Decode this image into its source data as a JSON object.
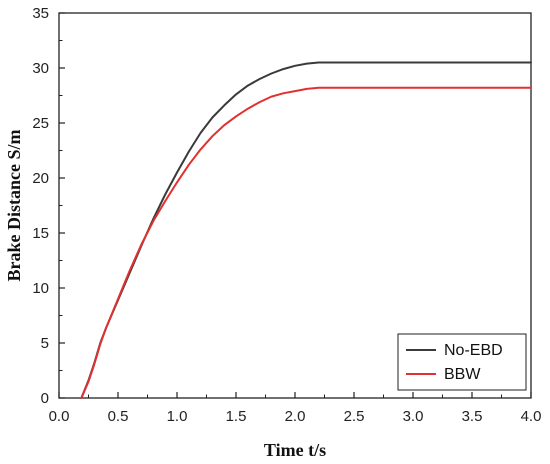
{
  "chart_data": {
    "type": "line",
    "xlabel": "Time t/s",
    "ylabel": "Brake Distance  S/m",
    "xlim": [
      0,
      4
    ],
    "ylim": [
      0,
      35
    ],
    "x_ticks": [
      "0.0",
      "0.5",
      "1.0",
      "1.5",
      "2.0",
      "2.5",
      "3.0",
      "3.5",
      "4.0"
    ],
    "y_ticks": [
      "0",
      "5",
      "10",
      "15",
      "20",
      "25",
      "30",
      "35"
    ],
    "grid": false,
    "legend_position": "bottom-right",
    "series": [
      {
        "name": "No-EBD",
        "color": "#3a3a3a",
        "points": [
          [
            0.19,
            0.0
          ],
          [
            0.25,
            1.6
          ],
          [
            0.3,
            3.2
          ],
          [
            0.35,
            5.0
          ],
          [
            0.4,
            6.4
          ],
          [
            0.5,
            8.9
          ],
          [
            0.6,
            11.4
          ],
          [
            0.7,
            13.9
          ],
          [
            0.8,
            16.3
          ],
          [
            0.9,
            18.5
          ],
          [
            1.0,
            20.5
          ],
          [
            1.1,
            22.4
          ],
          [
            1.2,
            24.1
          ],
          [
            1.3,
            25.5
          ],
          [
            1.4,
            26.6
          ],
          [
            1.5,
            27.6
          ],
          [
            1.6,
            28.4
          ],
          [
            1.7,
            29.0
          ],
          [
            1.8,
            29.5
          ],
          [
            1.9,
            29.9
          ],
          [
            2.0,
            30.2
          ],
          [
            2.1,
            30.4
          ],
          [
            2.2,
            30.5
          ],
          [
            2.5,
            30.5
          ],
          [
            3.0,
            30.5
          ],
          [
            3.5,
            30.5
          ],
          [
            4.0,
            30.5
          ]
        ]
      },
      {
        "name": "BBW",
        "color": "#e03030",
        "points": [
          [
            0.19,
            0.0
          ],
          [
            0.25,
            1.5
          ],
          [
            0.3,
            3.1
          ],
          [
            0.35,
            4.9
          ],
          [
            0.4,
            6.4
          ],
          [
            0.5,
            9.0
          ],
          [
            0.6,
            11.6
          ],
          [
            0.7,
            14.0
          ],
          [
            0.8,
            16.1
          ],
          [
            0.9,
            17.9
          ],
          [
            1.0,
            19.6
          ],
          [
            1.1,
            21.2
          ],
          [
            1.2,
            22.6
          ],
          [
            1.3,
            23.8
          ],
          [
            1.4,
            24.8
          ],
          [
            1.5,
            25.6
          ],
          [
            1.6,
            26.3
          ],
          [
            1.7,
            26.9
          ],
          [
            1.8,
            27.4
          ],
          [
            1.9,
            27.7
          ],
          [
            2.0,
            27.9
          ],
          [
            2.1,
            28.1
          ],
          [
            2.2,
            28.2
          ],
          [
            2.5,
            28.2
          ],
          [
            3.0,
            28.2
          ],
          [
            3.5,
            28.2
          ],
          [
            4.0,
            28.2
          ]
        ]
      }
    ]
  }
}
